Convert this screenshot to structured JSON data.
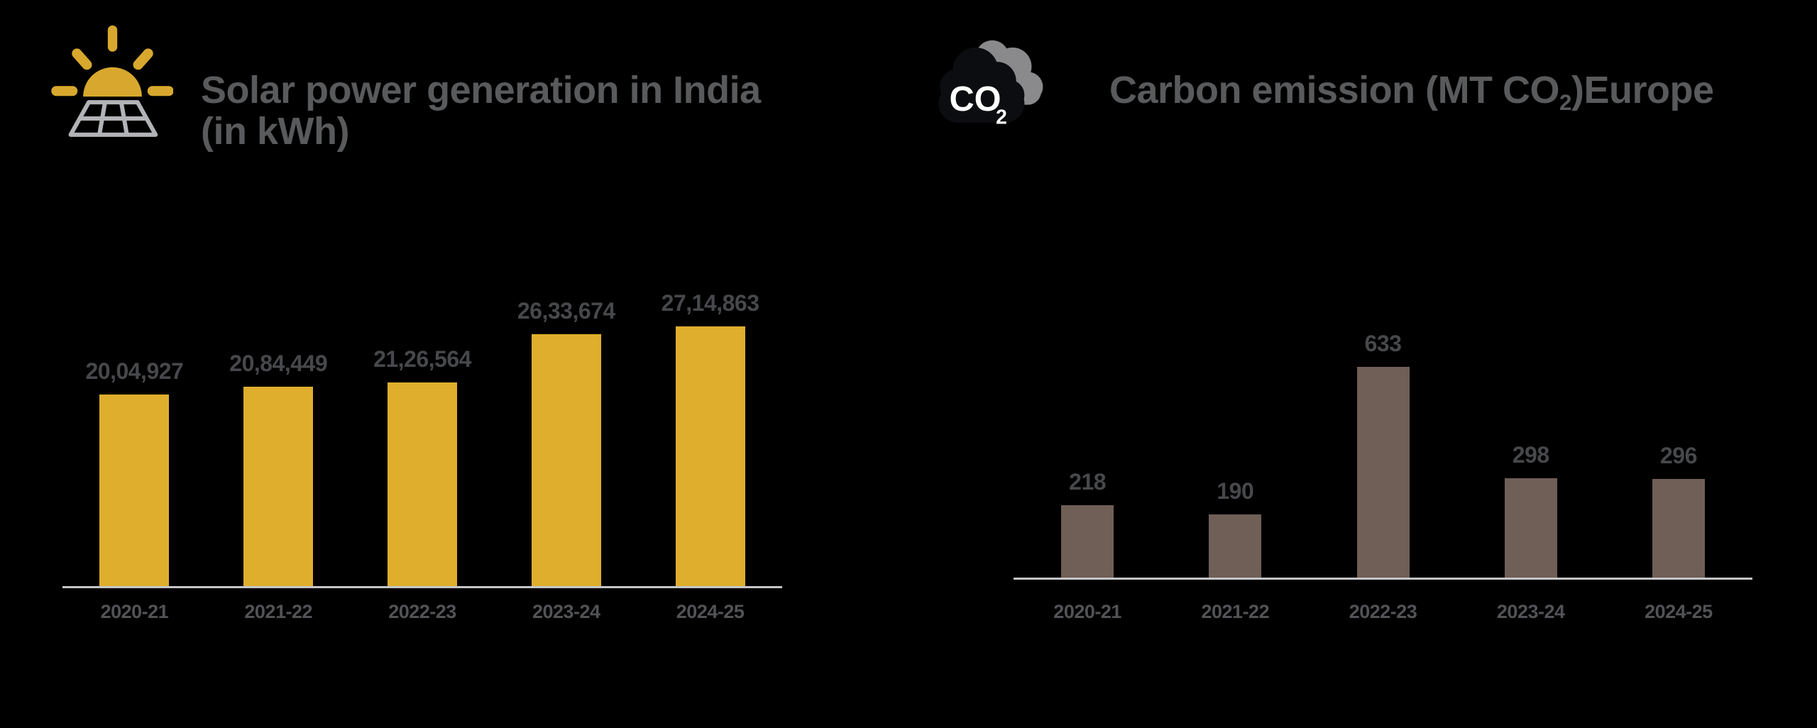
{
  "page": {
    "background": "#000000"
  },
  "colors": {
    "title_text": "#595A5C",
    "value_label_text": "#47484B",
    "axis_label_text": "#525356",
    "axis_line": "#C5C6C7",
    "solar_bar": "#DFAE2D",
    "carbon_bar": "#6F5F56",
    "sun_gold": "#D8A82E",
    "panel_gray": "#B2B3B7",
    "cloud_back_gray": "#8A8A8D",
    "cloud_front_dark": "#0C0D10",
    "co2_text": "#FFFFFF"
  },
  "chart_data": [
    {
      "type": "bar",
      "title": "Solar power generation in India (in kWh)",
      "title_lines": [
        "Solar power generation in India",
        "(in kWh)"
      ],
      "icon": "solar-panel-sun-icon",
      "categories": [
        "2020-21",
        "2021-22",
        "2022-23",
        "2023-24",
        "2024-25"
      ],
      "values": [
        2004927,
        2084449,
        2126564,
        2633674,
        2714863
      ],
      "value_labels": [
        "20,04,927",
        "20,84,449",
        "21,26,564",
        "26,33,674",
        "27,14,863"
      ],
      "bar_color": "#DFAE2D",
      "xlabel": "",
      "ylabel": "",
      "ylim": [
        0,
        2714863
      ],
      "grid": false,
      "legend": false
    },
    {
      "type": "bar",
      "title": "Carbon emission (MT CO2)Europe",
      "title_parts": {
        "prefix": "Carbon emission (MT CO",
        "sub": "2",
        "suffix": ")Europe"
      },
      "icon": "co2-cloud-icon",
      "icon_text": {
        "main": "CO",
        "sub": "2"
      },
      "categories": [
        "2020-21",
        "2021-22",
        "2022-23",
        "2023-24",
        "2024-25"
      ],
      "values": [
        218,
        190,
        633,
        298,
        296
      ],
      "value_labels": [
        "218",
        "190",
        "633",
        "298",
        "296"
      ],
      "bar_color": "#6F5F56",
      "xlabel": "",
      "ylabel": "",
      "ylim": [
        0,
        633
      ],
      "grid": false,
      "legend": false
    }
  ]
}
